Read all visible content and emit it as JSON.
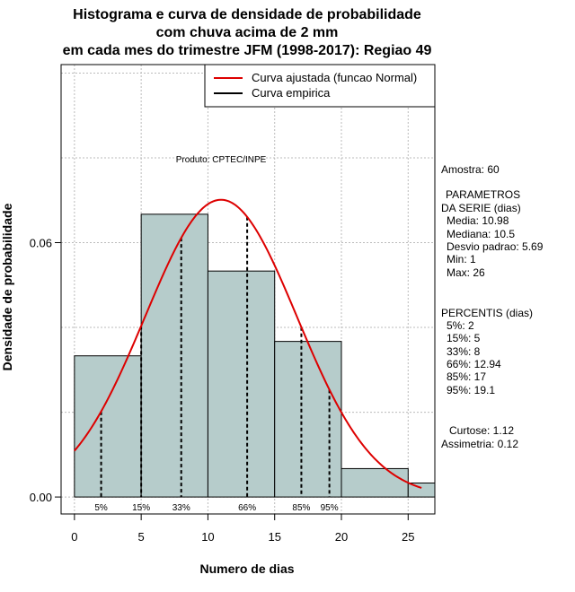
{
  "chart_data": {
    "type": "histogram",
    "title_lines": [
      "Histograma e curva de densidade de probabilidade",
      "com chuva acima de 2 mm",
      "em cada mes do trimestre JFM (1998-2017): Regiao 49"
    ],
    "xlabel": "Numero de dias",
    "ylabel": "Densidade de probabilidade",
    "xlim": [
      -1,
      27
    ],
    "ylim": [
      -0.004,
      0.102
    ],
    "x_ticks": [
      0,
      5,
      10,
      15,
      20,
      25
    ],
    "y_ticks": [
      0.0,
      0.06
    ],
    "y_tick_labels": [
      "0.00",
      "0.06"
    ],
    "grid_x": [
      0,
      5,
      10,
      15,
      20,
      25
    ],
    "grid_y": [
      0.0,
      0.02,
      0.04,
      0.06,
      0.08,
      0.1
    ],
    "bins": [
      {
        "x0": 0,
        "x1": 5,
        "density": 0.0333
      },
      {
        "x0": 5,
        "x1": 10,
        "density": 0.0667
      },
      {
        "x0": 10,
        "x1": 15,
        "density": 0.0533
      },
      {
        "x0": 15,
        "x1": 20,
        "density": 0.0367
      },
      {
        "x0": 20,
        "x1": 25,
        "density": 0.0067
      },
      {
        "x0": 25,
        "x1": 30,
        "density": 0.0033
      }
    ],
    "normal_fit": {
      "mean": 10.98,
      "sd": 5.69,
      "x_from": 0,
      "x_to": 26
    },
    "percentile_lines": [
      {
        "label": "5%",
        "x": 2
      },
      {
        "label": "15%",
        "x": 5
      },
      {
        "label": "33%",
        "x": 8
      },
      {
        "label": "66%",
        "x": 12.94
      },
      {
        "label": "85%",
        "x": 17
      },
      {
        "label": "95%",
        "x": 19.1
      }
    ],
    "legend": [
      {
        "label": "Curva ajustada (funcao Normal)",
        "color": "#dd0000"
      },
      {
        "label": "Curva empirica",
        "color": "#000000"
      }
    ],
    "legend_position": "top-right",
    "product_label": "Produto: CPTEC/INPE",
    "colors": {
      "bar_fill": "#b6cccb",
      "curve": "#dd0000",
      "grid": "#bbbbbb"
    }
  },
  "stats_panel": {
    "amostra": "Amostra: 60",
    "parametros_title_1": "PARAMETROS",
    "parametros_title_2": "DA SERIE (dias)",
    "parametros": [
      "Media: 10.98",
      "Mediana: 10.5",
      "Desvio padrao: 5.69",
      "Min: 1",
      "Max: 26"
    ],
    "percentis_title": "PERCENTIS (dias)",
    "percentis": [
      "5%: 2",
      "15%: 5",
      "33%: 8",
      "66%: 12.94",
      "85%: 17",
      "95%: 19.1"
    ],
    "curtose": "Curtose: 1.12",
    "assimetria": "Assimetria: 0.12"
  }
}
